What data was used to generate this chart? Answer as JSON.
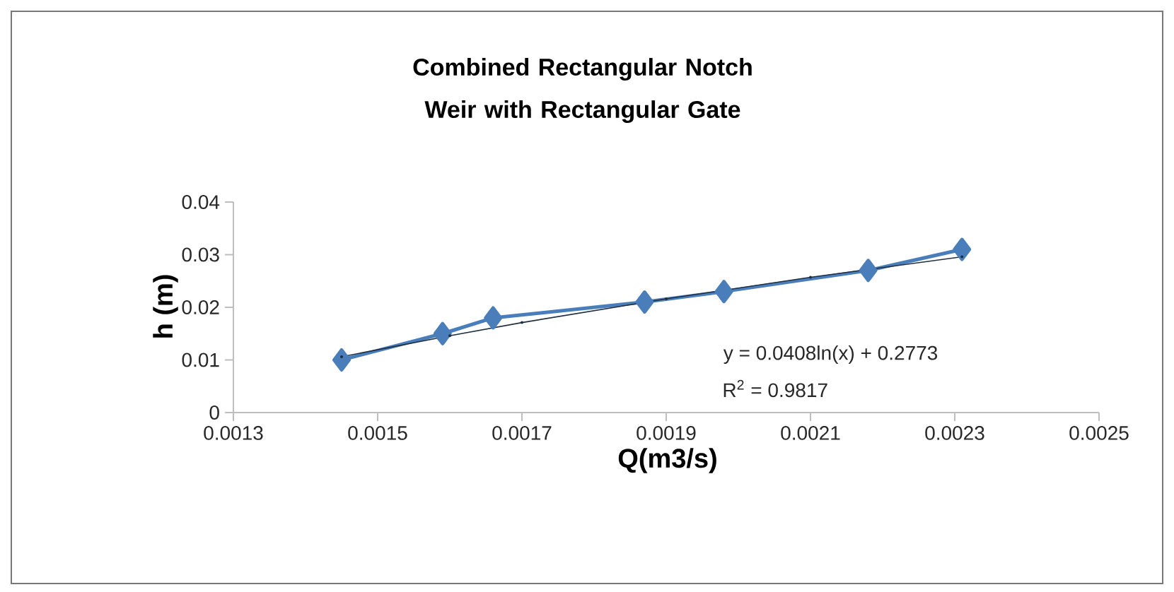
{
  "chart_data": {
    "type": "line",
    "title": "Combined Rectangular Notch Weir with Rectangular Gate",
    "xlabel": "Q(m3/s)",
    "ylabel": "h (m)",
    "series": [
      {
        "color": "#4a7ebb",
        "marker": "diamond",
        "x": [
          0.00145,
          0.00159,
          0.00166,
          0.00187,
          0.00198,
          0.00218,
          0.00231
        ],
        "values": [
          0.01,
          0.015,
          0.018,
          0.021,
          0.023,
          0.027,
          0.031
        ]
      },
      {
        "color": "#1f2f3f",
        "marker": "circle",
        "x": [
          0.00145,
          0.0016,
          0.0017,
          0.0019,
          0.0021,
          0.00231
        ],
        "values": [
          0.0106,
          0.0146,
          0.0171,
          0.0216,
          0.0257,
          0.0296
        ]
      }
    ],
    "annotations": [
      "y = 0.0408ln(x) + 0.2773",
      "R$^{2}$ = 0.9817"
    ],
    "xlim": [
      0.0013,
      0.0025
    ],
    "xticks": [
      0.0013,
      0.0015,
      0.0017,
      0.0019,
      0.0021,
      0.0023,
      0.0025
    ],
    "ylim": [
      0,
      0.04
    ],
    "yticks": [
      0,
      0.01,
      0.02,
      0.03,
      0.04
    ],
    "grid": false
  }
}
